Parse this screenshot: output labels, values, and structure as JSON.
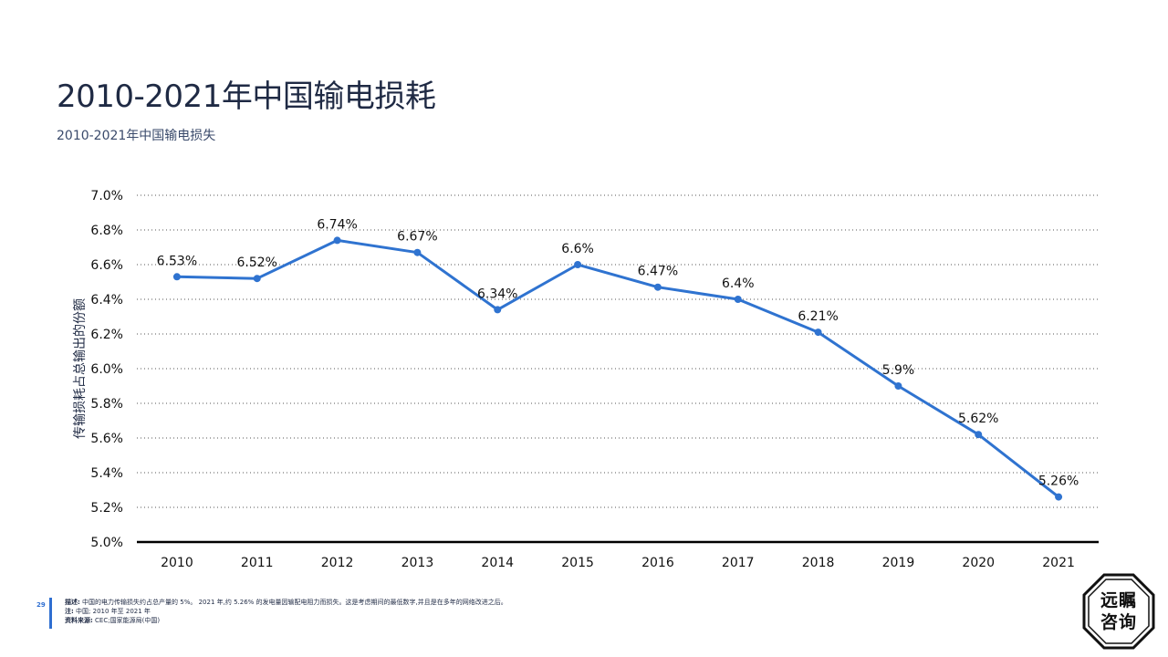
{
  "page": {
    "title": "2010-2021年中国输电损耗",
    "subtitle": "2010-2021年中国输电损失",
    "page_number": "29",
    "footer": {
      "description_label": "描述:",
      "description_text": "中国的电力传输损失约占总产量的 5%。 2021 年,约 5.26% 的发电量因输配电阻力而损失。这是考虑期间的最低数字,并且是在多年的网络改进之后。",
      "note_label": "注:",
      "note_text": "中国; 2010 年至 2021 年",
      "source_label": "资料来源:",
      "source_text": "CEC;国家能源局(中国)"
    },
    "logo": {
      "line1": "远瞩",
      "line2": "咨询"
    }
  },
  "colors": {
    "line": "#2f73d0",
    "title": "#1f2a44",
    "grid": "#555555",
    "axis": "#000000"
  },
  "chart_data": {
    "type": "line",
    "title": "",
    "xlabel": "",
    "ylabel": "传输损耗占总输出的份额",
    "categories": [
      "2010",
      "2011",
      "2012",
      "2013",
      "2014",
      "2015",
      "2016",
      "2017",
      "2018",
      "2019",
      "2020",
      "2021"
    ],
    "series": [
      {
        "values": [
          6.53,
          6.52,
          6.74,
          6.67,
          6.34,
          6.6,
          6.47,
          6.4,
          6.21,
          5.9,
          5.62,
          5.26
        ],
        "labels": [
          "6.53%",
          "6.52%",
          "6.74%",
          "6.67%",
          "6.34%",
          "6.6%",
          "6.47%",
          "6.4%",
          "6.21%",
          "5.9%",
          "5.62%",
          "5.26%"
        ]
      }
    ],
    "ylim": [
      5.0,
      7.0
    ],
    "yticks": [
      5.0,
      5.2,
      5.4,
      5.6,
      5.8,
      6.0,
      6.2,
      6.4,
      6.6,
      6.8,
      7.0
    ],
    "ytick_labels": [
      "5.0%",
      "5.2%",
      "5.4%",
      "5.6%",
      "5.8%",
      "6.0%",
      "6.2%",
      "6.4%",
      "6.6%",
      "6.8%",
      "7.0%"
    ],
    "grid": true,
    "grid_style": "dotted",
    "legend": "none"
  }
}
